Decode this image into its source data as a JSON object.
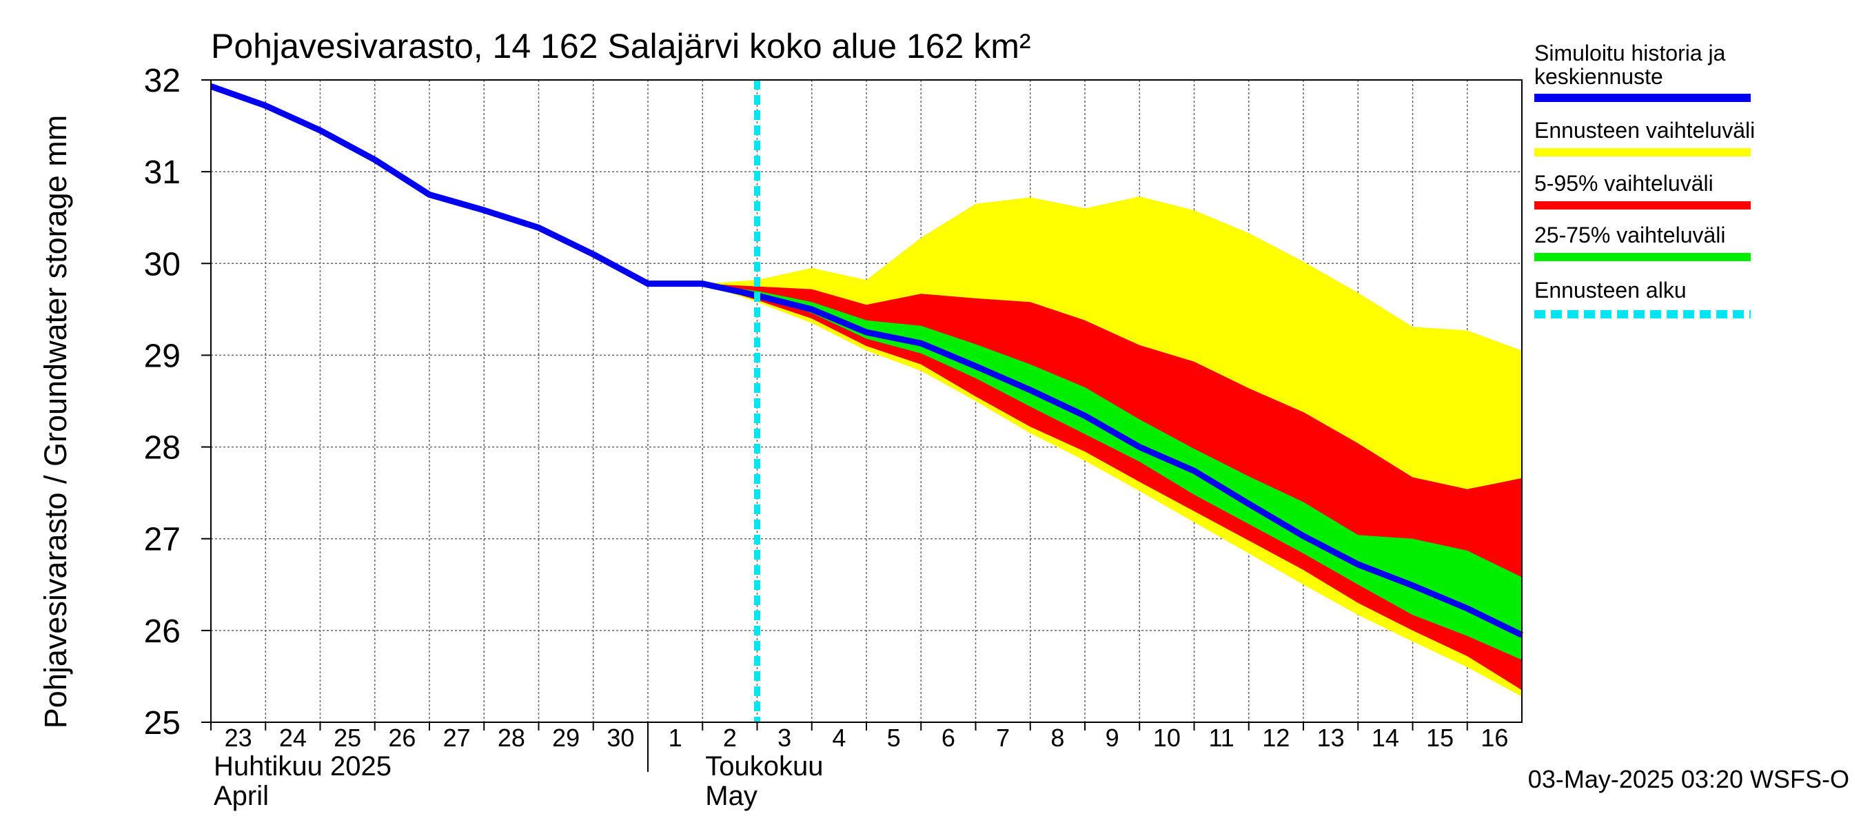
{
  "chart_data": {
    "type": "area",
    "title": "Pohjavesivarasto, 14 162 Salajärvi koko alue 162 km²",
    "ylabel": "Pohjavesivarasto / Groundwater storage   mm",
    "ylim": [
      25,
      32
    ],
    "yticks": [
      25,
      26,
      27,
      28,
      29,
      30,
      31,
      32
    ],
    "xlim": [
      0,
      24
    ],
    "x_ticks": [
      {
        "x": 0,
        "label": "23"
      },
      {
        "x": 1,
        "label": "24"
      },
      {
        "x": 2,
        "label": "25"
      },
      {
        "x": 3,
        "label": "26"
      },
      {
        "x": 4,
        "label": "27"
      },
      {
        "x": 5,
        "label": "28"
      },
      {
        "x": 6,
        "label": "29"
      },
      {
        "x": 7,
        "label": "30"
      },
      {
        "x": 8,
        "label": "1"
      },
      {
        "x": 9,
        "label": "2"
      },
      {
        "x": 10,
        "label": "3"
      },
      {
        "x": 11,
        "label": "4"
      },
      {
        "x": 12,
        "label": "5"
      },
      {
        "x": 13,
        "label": "6"
      },
      {
        "x": 14,
        "label": "7"
      },
      {
        "x": 15,
        "label": "8"
      },
      {
        "x": 16,
        "label": "9"
      },
      {
        "x": 17,
        "label": "10"
      },
      {
        "x": 18,
        "label": "11"
      },
      {
        "x": 19,
        "label": "12"
      },
      {
        "x": 20,
        "label": "13"
      },
      {
        "x": 21,
        "label": "14"
      },
      {
        "x": 22,
        "label": "15"
      },
      {
        "x": 23,
        "label": "16"
      }
    ],
    "month_labels": [
      {
        "x": 0,
        "line1": "Huhtikuu  2025",
        "line2": "April"
      },
      {
        "x": 9,
        "line1": "Toukokuu",
        "line2": "May"
      }
    ],
    "month_boundary_x": 8,
    "forecast_start_x": 10,
    "forecast_x": [
      9,
      10,
      11,
      12,
      13,
      14,
      15,
      16,
      17,
      18,
      19,
      20,
      21,
      22,
      23,
      24
    ],
    "bands": [
      {
        "name": "Ennusteen vaihteluväli",
        "color": "#ffff00",
        "upper": [
          29.78,
          29.82,
          29.95,
          29.82,
          30.28,
          30.65,
          30.72,
          30.6,
          30.73,
          30.58,
          30.33,
          30.02,
          29.68,
          29.31,
          29.27,
          29.05
        ],
        "lower": [
          29.78,
          29.58,
          29.35,
          29.05,
          28.83,
          28.5,
          28.15,
          27.85,
          27.52,
          27.18,
          26.84,
          26.5,
          26.17,
          25.88,
          25.6,
          25.28
        ]
      },
      {
        "name": "5-95% vaihteluväli",
        "color": "#ff0000",
        "upper": [
          29.78,
          29.75,
          29.72,
          29.55,
          29.67,
          29.62,
          29.58,
          29.38,
          29.11,
          28.93,
          28.64,
          28.38,
          28.04,
          27.67,
          27.54,
          27.66
        ],
        "lower": [
          29.78,
          29.6,
          29.4,
          29.1,
          28.9,
          28.55,
          28.22,
          27.95,
          27.62,
          27.3,
          26.98,
          26.66,
          26.3,
          26.0,
          25.72,
          25.35
        ]
      },
      {
        "name": "25-75% vaihteluväli",
        "color": "#00ee00",
        "upper": [
          29.78,
          29.7,
          29.58,
          29.38,
          29.32,
          29.12,
          28.9,
          28.65,
          28.3,
          27.98,
          27.68,
          27.4,
          27.04,
          27.0,
          26.87,
          26.58
        ],
        "lower": [
          29.78,
          29.64,
          29.46,
          29.18,
          29.02,
          28.75,
          28.44,
          28.14,
          27.84,
          27.48,
          27.16,
          26.84,
          26.5,
          26.17,
          25.94,
          25.68
        ]
      }
    ],
    "series": [
      {
        "name": "Simuloitu historia ja keskiennuste",
        "color": "#0000ee",
        "x": [
          0,
          1,
          2,
          3,
          4,
          5,
          6,
          7,
          8,
          9,
          10,
          11,
          12,
          13,
          14,
          15,
          16,
          17,
          18,
          19,
          20,
          21,
          22,
          23,
          24
        ],
        "y": [
          31.93,
          31.72,
          31.45,
          31.13,
          30.75,
          30.58,
          30.39,
          30.1,
          29.78,
          29.78,
          29.65,
          29.5,
          29.25,
          29.13,
          28.88,
          28.62,
          28.34,
          28.0,
          27.74,
          27.38,
          27.03,
          26.72,
          26.49,
          26.24,
          25.95
        ]
      }
    ],
    "legend": {
      "position": "right",
      "entries": [
        {
          "label_lines": [
            "Simuloitu historia ja",
            "keskiennuste"
          ],
          "color": "#0000ee",
          "style": "solid"
        },
        {
          "label_lines": [
            "Ennusteen vaihteluväli"
          ],
          "color": "#ffff00",
          "style": "solid"
        },
        {
          "label_lines": [
            "5-95% vaihteluväli"
          ],
          "color": "#ff0000",
          "style": "solid"
        },
        {
          "label_lines": [
            "25-75% vaihteluväli"
          ],
          "color": "#00ee00",
          "style": "solid"
        },
        {
          "label_lines": [
            "Ennusteen alku"
          ],
          "color": "#00e5ee",
          "style": "dashed"
        }
      ]
    },
    "grid": true,
    "footer": "03-May-2025 03:20 WSFS-O"
  }
}
